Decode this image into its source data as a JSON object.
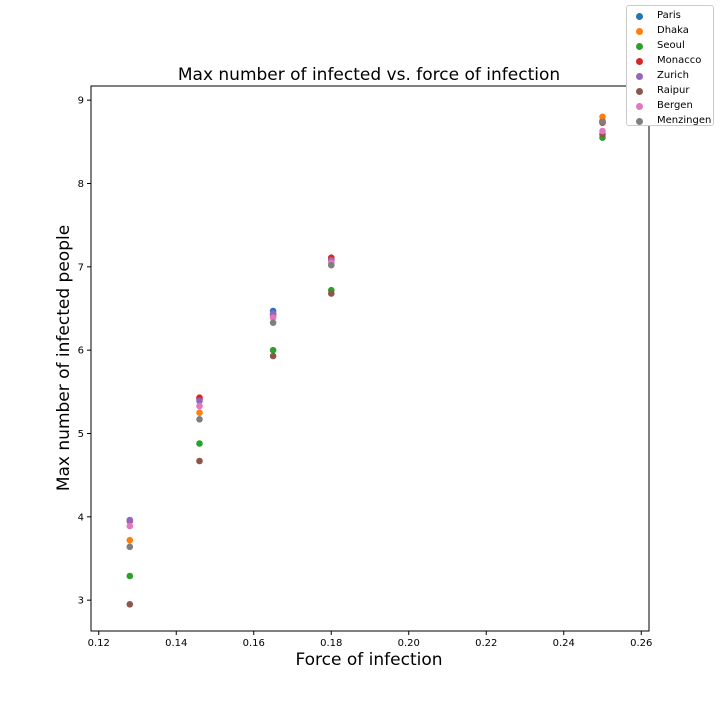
{
  "chart_data": {
    "type": "scatter",
    "title": "Max number of infected vs. force of infection",
    "xlabel": "Force of infection",
    "ylabel": "Max number of infected people",
    "xlim": [
      0.118,
      0.262
    ],
    "ylim": [
      2.63,
      9.17
    ],
    "xticks": [
      "0.12",
      "0.14",
      "0.16",
      "0.18",
      "0.20",
      "0.22",
      "0.24",
      "0.26"
    ],
    "yticks": [
      "3",
      "4",
      "5",
      "6",
      "7",
      "8",
      "9"
    ],
    "x": [
      0.128,
      0.146,
      0.165,
      0.18,
      0.25
    ],
    "legend_position": "upper right, outside plot",
    "grid": false,
    "series": [
      {
        "name": "Paris",
        "color": "#1f77b4",
        "values": [
          3.96,
          5.41,
          6.47,
          7.1,
          8.75
        ]
      },
      {
        "name": "Dhaka",
        "color": "#ff7f0e",
        "values": [
          3.72,
          5.25,
          6.41,
          7.09,
          8.8
        ]
      },
      {
        "name": "Seoul",
        "color": "#2ca02c",
        "values": [
          3.29,
          4.88,
          6.0,
          6.72,
          8.55
        ]
      },
      {
        "name": "Monacco",
        "color": "#d62728",
        "values": [
          3.95,
          5.43,
          6.43,
          7.11,
          8.73
        ]
      },
      {
        "name": "Zurich",
        "color": "#9467bd",
        "values": [
          3.96,
          5.39,
          6.44,
          7.08,
          8.74
        ]
      },
      {
        "name": "Raipur",
        "color": "#8c564b",
        "values": [
          2.95,
          4.67,
          5.93,
          6.68,
          8.59
        ]
      },
      {
        "name": "Bergen",
        "color": "#e377c2",
        "values": [
          3.89,
          5.33,
          6.39,
          7.05,
          8.63
        ]
      },
      {
        "name": "Menzingen",
        "color": "#7f7f7f",
        "values": [
          3.64,
          5.17,
          6.33,
          7.02,
          8.74
        ]
      }
    ]
  }
}
